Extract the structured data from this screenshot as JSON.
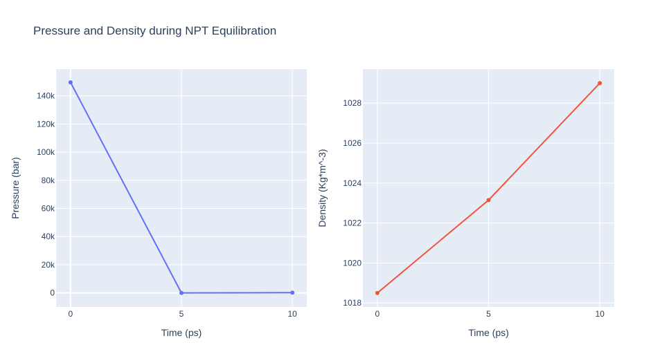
{
  "title": "Pressure and Density during NPT Equilibration",
  "colors": {
    "plot_bg": "#e5ecf6",
    "grid": "#ffffff",
    "text": "#2a3f5f",
    "pressure_line": "#636efa",
    "density_line": "#ef553b"
  },
  "chart_data": [
    {
      "type": "line",
      "series": [
        {
          "name": "Pressure",
          "x": [
            0,
            5,
            10
          ],
          "y": [
            149600,
            0,
            200
          ]
        }
      ],
      "xlabel": "Time (ps)",
      "ylabel": "Pressure (bar)",
      "xlim": [
        -0.65,
        10.65
      ],
      "ylim": [
        -10000,
        159000
      ],
      "xticks": [
        0,
        5,
        10
      ],
      "xtick_labels": [
        "0",
        "5",
        "10"
      ],
      "yticks": [
        0,
        20000,
        40000,
        60000,
        80000,
        100000,
        120000,
        140000
      ],
      "ytick_labels": [
        "0",
        "20k",
        "40k",
        "60k",
        "80k",
        "100k",
        "120k",
        "140k"
      ],
      "grid": true
    },
    {
      "type": "line",
      "series": [
        {
          "name": "Density",
          "x": [
            0,
            5,
            10
          ],
          "y": [
            1018.5,
            1023.15,
            1029.0
          ]
        }
      ],
      "xlabel": "Time (ps)",
      "ylabel": "Density (Kg*m^-3)",
      "xlim": [
        -0.65,
        10.65
      ],
      "ylim": [
        1017.8,
        1029.7
      ],
      "xticks": [
        0,
        5,
        10
      ],
      "xtick_labels": [
        "0",
        "5",
        "10"
      ],
      "yticks": [
        1018,
        1020,
        1022,
        1024,
        1026,
        1028
      ],
      "ytick_labels": [
        "1018",
        "1020",
        "1022",
        "1024",
        "1026",
        "1028"
      ],
      "grid": true
    }
  ]
}
